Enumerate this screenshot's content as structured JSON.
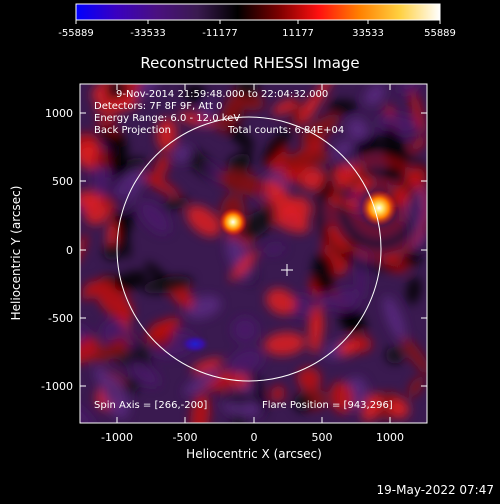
{
  "colorbar": {
    "ticks": [
      "-55889",
      "-33533",
      "-11177",
      "11177",
      "33533",
      "55889"
    ],
    "stops": [
      "#0000ff",
      "#3a00c0",
      "#4a1080",
      "#3a1a50",
      "#000000",
      "#7a0000",
      "#ff1010",
      "#ff8000",
      "#ffd040",
      "#ffffff"
    ]
  },
  "plot": {
    "title": "Reconstructed RHESSI Image",
    "xlabel": "Heliocentric X (arcsec)",
    "ylabel": "Heliocentric Y (arcsec)",
    "x_ticks": [
      "-1000",
      "-500",
      "0",
      "500",
      "1000"
    ],
    "y_ticks": [
      "1000",
      "500",
      "0",
      "-500",
      "-1000"
    ],
    "info": {
      "time_range": "9-Nov-2014 21:59:48.000 to 22:04:32.000",
      "detectors": "Detectors: 7F 8F 9F, Att 0",
      "energy": "Energy Range: 6.0 - 12.0 keV",
      "method": "Back Projection",
      "counts": "Total counts: 6.84E+04"
    },
    "spin_axis": "Spin Axis = [266,-200]",
    "flare_position": "Flare Position = [943,296]"
  },
  "footer": {
    "date": "19-May-2022 07:47"
  }
}
